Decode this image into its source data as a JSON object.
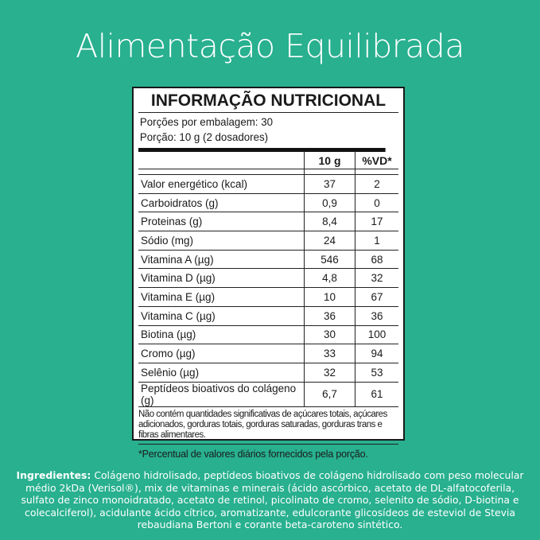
{
  "title": "Alimentação Equilibrada",
  "table": {
    "heading": "INFORMAÇÃO NUTRICIONAL",
    "servings_per_package": "Porções por embalagem: 30",
    "serving": "Porção: 10 g (2 dosadores)",
    "col_amount": "10 g",
    "col_dv": "%VD*",
    "rows": [
      {
        "name": "Valor energético (kcal)",
        "amount": "37",
        "dv": "2"
      },
      {
        "name": "Carboidratos (g)",
        "amount": "0,9",
        "dv": "0"
      },
      {
        "name": "Proteinas (g)",
        "amount": "8,4",
        "dv": "17"
      },
      {
        "name": "Sódio (mg)",
        "amount": "24",
        "dv": "1"
      },
      {
        "name": "Vitamina A (µg)",
        "amount": "546",
        "dv": "68"
      },
      {
        "name": "Vitamina D (µg)",
        "amount": "4,8",
        "dv": "32"
      },
      {
        "name": "Vitamina E (µg)",
        "amount": "10",
        "dv": "67"
      },
      {
        "name": "Vitamina C (µg)",
        "amount": "36",
        "dv": "36"
      },
      {
        "name": "Biotina (µg)",
        "amount": "30",
        "dv": "100"
      },
      {
        "name": "Cromo (µg)",
        "amount": "33",
        "dv": "94"
      },
      {
        "name": "Selênio (µg)",
        "amount": "32",
        "dv": "53"
      },
      {
        "name": "Peptídeos bioativos do colágeno (g)",
        "amount": "6,7",
        "dv": "61"
      }
    ],
    "note": "Não contém quantidades significativas de açúcares totais, açúcares adicionados, gorduras totais, gorduras saturadas, gorduras trans e fibras alimentares.",
    "footnote": "*Percentual de valores diários fornecidos pela porção."
  },
  "ingredients": {
    "label": "Ingredientes:",
    "text": " Colágeno hidrolisado, peptídeos bioativos de colágeno hidrolisado com peso molecular médio 2kDa (Verisol®), mix de vitaminas e minerais (ácido ascórbico, acetato de DL-alfatocoferila, sulfato de zinco monoidratado, acetato de retinol, picolinato de cromo, selenito de sódio, D-biotina e colecalciferol), acidulante ácido cítrico, aromatizante, edulcorante glicosídeos de esteviol de Stevia rebaudiana Bertoni e corante beta-caroteno sintético."
  }
}
